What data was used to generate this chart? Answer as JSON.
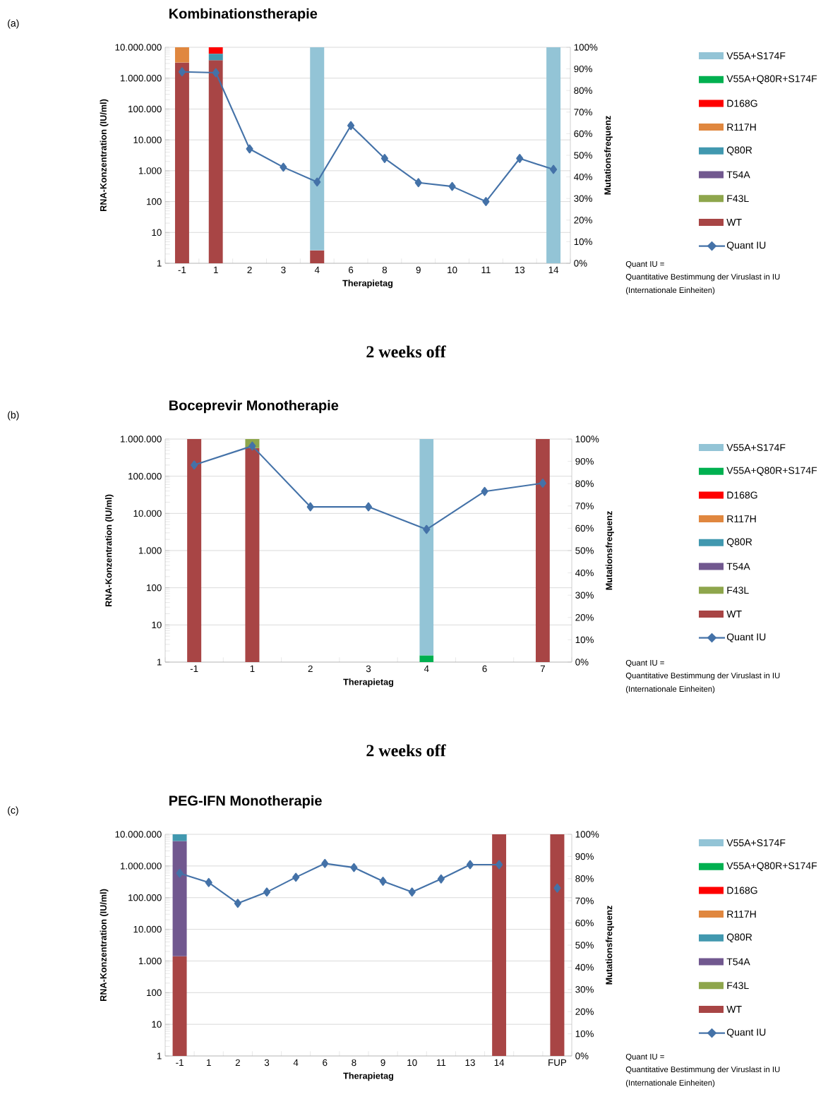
{
  "chart_data": [
    {
      "type": "bar",
      "stacked": true,
      "log": "y",
      "grid": "y",
      "legend": "right",
      "marker": "diamond",
      "title": "Kombinationstherapie",
      "xlabel": "Therapietag",
      "ylabel": "RNA-Konzentration (IU/ml)",
      "y2label": "Mutationsfrequenz",
      "categories": [
        "-1",
        "1",
        "2",
        "3",
        "4",
        "6",
        "8",
        "9",
        "10",
        "11",
        "13",
        "14"
      ],
      "ylim": [
        1,
        10000000
      ],
      "yticks": [
        {
          "value": 1,
          "label": "1"
        },
        {
          "value": 10,
          "label": "10"
        },
        {
          "value": 100,
          "label": "100"
        },
        {
          "value": 1000,
          "label": "1.000"
        },
        {
          "value": 10000,
          "label": "10.000"
        },
        {
          "value": 100000,
          "label": "100.000"
        },
        {
          "value": 1000000,
          "label": "1.000.000"
        },
        {
          "value": 10000000,
          "label": "10.000.000"
        }
      ],
      "y2lim": [
        0,
        100
      ],
      "y2ticks": [
        {
          "value": 0,
          "label": "0%"
        },
        {
          "value": 10,
          "label": "10%"
        },
        {
          "value": 20,
          "label": "20%"
        },
        {
          "value": 30,
          "label": "30%"
        },
        {
          "value": 40,
          "label": "40%"
        },
        {
          "value": 50,
          "label": "50%"
        },
        {
          "value": 60,
          "label": "60%"
        },
        {
          "value": 70,
          "label": "70%"
        },
        {
          "value": 80,
          "label": "80%"
        },
        {
          "value": 90,
          "label": "90%"
        },
        {
          "value": 100,
          "label": "100%"
        }
      ],
      "series": [
        {
          "name": "WT",
          "color": "#a84545",
          "axis": "y2",
          "values": [
            93,
            94,
            null,
            null,
            6,
            null,
            null,
            null,
            null,
            null,
            null,
            null
          ]
        },
        {
          "name": "F43L",
          "color": "#8ea64c",
          "axis": "y2",
          "values": [
            null,
            null,
            null,
            null,
            null,
            null,
            null,
            null,
            null,
            null,
            null,
            null
          ]
        },
        {
          "name": "T54A",
          "color": "#71588f",
          "axis": "y2",
          "values": [
            null,
            null,
            null,
            null,
            null,
            null,
            null,
            null,
            null,
            null,
            null,
            null
          ]
        },
        {
          "name": "Q80R",
          "color": "#4198af",
          "axis": "y2",
          "values": [
            null,
            3,
            null,
            null,
            null,
            null,
            null,
            null,
            null,
            null,
            null,
            null
          ]
        },
        {
          "name": "R117H",
          "color": "#e0873f",
          "axis": "y2",
          "values": [
            7,
            null,
            null,
            null,
            null,
            null,
            null,
            null,
            null,
            null,
            null,
            null
          ]
        },
        {
          "name": "D168G",
          "color": "#ff0000",
          "axis": "y2",
          "values": [
            null,
            3,
            null,
            null,
            null,
            null,
            null,
            null,
            null,
            null,
            null,
            null
          ]
        },
        {
          "name": "V55A+Q80R+S174F",
          "color": "#00b050",
          "axis": "y2",
          "values": [
            null,
            null,
            null,
            null,
            null,
            null,
            null,
            null,
            null,
            null,
            null,
            null
          ]
        },
        {
          "name": "V55A+S174F",
          "color": "#93c4d6",
          "axis": "y2",
          "values": [
            null,
            null,
            null,
            null,
            94,
            null,
            null,
            null,
            null,
            null,
            null,
            100
          ]
        },
        {
          "name": "Quant IU",
          "color": "#4472a8",
          "type": "line",
          "values": [
            1600000,
            1500000,
            5100,
            1300,
            430,
            29000,
            2500,
            410,
            310,
            100,
            2500,
            1100
          ]
        }
      ],
      "annotations": [
        "(a)",
        "Quant IU =",
        "Quantitative Bestimmung der Viruslast in IU",
        "(Internationale Einheiten)",
        "2 weeks off"
      ]
    },
    {
      "type": "bar",
      "stacked": true,
      "log": "y",
      "grid": "y",
      "legend": "right",
      "marker": "diamond",
      "title": "Boceprevir Monotherapie",
      "xlabel": "Therapietag",
      "ylabel": "RNA-Konzentration (IU/ml)",
      "y2label": "Mutationsfrequenz",
      "categories": [
        "-1",
        "1",
        "2",
        "3",
        "4",
        "6",
        "7"
      ],
      "ylim": [
        1,
        1000000
      ],
      "yticks": [
        {
          "value": 1,
          "label": "1"
        },
        {
          "value": 10,
          "label": "10"
        },
        {
          "value": 100,
          "label": "100"
        },
        {
          "value": 1000,
          "label": "1.000"
        },
        {
          "value": 10000,
          "label": "10.000"
        },
        {
          "value": 100000,
          "label": "100.000"
        },
        {
          "value": 1000000,
          "label": "1.000.000"
        }
      ],
      "y2lim": [
        0,
        100
      ],
      "y2ticks": [
        {
          "value": 0,
          "label": "0%"
        },
        {
          "value": 10,
          "label": "10%"
        },
        {
          "value": 20,
          "label": "20%"
        },
        {
          "value": 30,
          "label": "30%"
        },
        {
          "value": 40,
          "label": "40%"
        },
        {
          "value": 50,
          "label": "50%"
        },
        {
          "value": 60,
          "label": "60%"
        },
        {
          "value": 70,
          "label": "70%"
        },
        {
          "value": 80,
          "label": "80%"
        },
        {
          "value": 90,
          "label": "90%"
        },
        {
          "value": 100,
          "label": "100%"
        }
      ],
      "series": [
        {
          "name": "WT",
          "color": "#a84545",
          "axis": "y2",
          "values": [
            100,
            96,
            null,
            null,
            null,
            null,
            100
          ]
        },
        {
          "name": "F43L",
          "color": "#8ea64c",
          "axis": "y2",
          "values": [
            null,
            4,
            null,
            null,
            null,
            null,
            null
          ]
        },
        {
          "name": "T54A",
          "color": "#71588f",
          "axis": "y2",
          "values": [
            null,
            null,
            null,
            null,
            null,
            null,
            null
          ]
        },
        {
          "name": "Q80R",
          "color": "#4198af",
          "axis": "y2",
          "values": [
            null,
            null,
            null,
            null,
            null,
            null,
            null
          ]
        },
        {
          "name": "R117H",
          "color": "#e0873f",
          "axis": "y2",
          "values": [
            null,
            null,
            null,
            null,
            null,
            null,
            null
          ]
        },
        {
          "name": "D168G",
          "color": "#ff0000",
          "axis": "y2",
          "values": [
            null,
            null,
            null,
            null,
            null,
            null,
            null
          ]
        },
        {
          "name": "V55A+Q80R+S174F",
          "color": "#00b050",
          "axis": "y2",
          "values": [
            null,
            null,
            null,
            null,
            3,
            null,
            null
          ]
        },
        {
          "name": "V55A+S174F",
          "color": "#93c4d6",
          "axis": "y2",
          "values": [
            null,
            null,
            null,
            null,
            97,
            null,
            null
          ]
        },
        {
          "name": "Quant IU",
          "color": "#4472a8",
          "type": "line",
          "values": [
            200000,
            650000,
            15000,
            15000,
            3700,
            39000,
            65000
          ]
        }
      ],
      "annotations": [
        "(b)",
        "Quant IU =",
        "Quantitative Bestimmung der Viruslast in IU",
        "(Internationale Einheiten)",
        "2 weeks off"
      ]
    },
    {
      "type": "bar",
      "stacked": true,
      "log": "y",
      "grid": "y",
      "legend": "right",
      "marker": "diamond",
      "title": "PEG-IFN Monotherapie",
      "xlabel": "Therapietag",
      "ylabel": "RNA-Konzentration (IU/ml)",
      "y2label": "Mutationsfrequenz",
      "categories": [
        "-1",
        "1",
        "2",
        "3",
        "4",
        "6",
        "8",
        "9",
        "10",
        "11",
        "13",
        "14",
        null,
        "FUP"
      ],
      "ylim": [
        1,
        10000000
      ],
      "yticks": [
        {
          "value": 1,
          "label": "1"
        },
        {
          "value": 10,
          "label": "10"
        },
        {
          "value": 100,
          "label": "100"
        },
        {
          "value": 1000,
          "label": "1.000"
        },
        {
          "value": 10000,
          "label": "10.000"
        },
        {
          "value": 100000,
          "label": "100.000"
        },
        {
          "value": 1000000,
          "label": "1.000.000"
        },
        {
          "value": 10000000,
          "label": "10.000.000"
        }
      ],
      "y2lim": [
        0,
        100
      ],
      "y2ticks": [
        {
          "value": 0,
          "label": "0%"
        },
        {
          "value": 10,
          "label": "10%"
        },
        {
          "value": 20,
          "label": "20%"
        },
        {
          "value": 30,
          "label": "30%"
        },
        {
          "value": 40,
          "label": "40%"
        },
        {
          "value": 50,
          "label": "50%"
        },
        {
          "value": 60,
          "label": "60%"
        },
        {
          "value": 70,
          "label": "70%"
        },
        {
          "value": 80,
          "label": "80%"
        },
        {
          "value": 90,
          "label": "90%"
        },
        {
          "value": 100,
          "label": "100%"
        }
      ],
      "series": [
        {
          "name": "WT",
          "color": "#a84545",
          "axis": "y2",
          "values": [
            45,
            null,
            null,
            null,
            null,
            null,
            null,
            null,
            null,
            null,
            null,
            100,
            null,
            100
          ]
        },
        {
          "name": "F43L",
          "color": "#8ea64c",
          "axis": "y2",
          "values": [
            null,
            null,
            null,
            null,
            null,
            null,
            null,
            null,
            null,
            null,
            null,
            null,
            null,
            null
          ]
        },
        {
          "name": "T54A",
          "color": "#71588f",
          "axis": "y2",
          "values": [
            52,
            null,
            null,
            null,
            null,
            null,
            null,
            null,
            null,
            null,
            null,
            null,
            null,
            null
          ]
        },
        {
          "name": "Q80R",
          "color": "#4198af",
          "axis": "y2",
          "values": [
            3,
            null,
            null,
            null,
            null,
            null,
            null,
            null,
            null,
            null,
            null,
            null,
            null,
            null
          ]
        },
        {
          "name": "R117H",
          "color": "#e0873f",
          "axis": "y2",
          "values": [
            null,
            null,
            null,
            null,
            null,
            null,
            null,
            null,
            null,
            null,
            null,
            null,
            null,
            null
          ]
        },
        {
          "name": "D168G",
          "color": "#ff0000",
          "axis": "y2",
          "values": [
            null,
            null,
            null,
            null,
            null,
            null,
            null,
            null,
            null,
            null,
            null,
            null,
            null,
            null
          ]
        },
        {
          "name": "V55A+Q80R+S174F",
          "color": "#00b050",
          "axis": "y2",
          "values": [
            null,
            null,
            null,
            null,
            null,
            null,
            null,
            null,
            null,
            null,
            null,
            null,
            null,
            null
          ]
        },
        {
          "name": "V55A+S174F",
          "color": "#93c4d6",
          "axis": "y2",
          "values": [
            null,
            null,
            null,
            null,
            null,
            null,
            null,
            null,
            null,
            null,
            null,
            null,
            null,
            null
          ]
        },
        {
          "name": "Quant IU",
          "color": "#4472a8",
          "type": "line",
          "values": [
            590000,
            300000,
            66000,
            150000,
            440000,
            1200000,
            890000,
            330000,
            150000,
            390000,
            1100000,
            1100000,
            null,
            200000
          ]
        }
      ],
      "annotations": [
        "(c)",
        "Quant IU =",
        "Quantitative Bestimmung der Viruslast in IU",
        "(Internationale Einheiten)"
      ]
    }
  ]
}
